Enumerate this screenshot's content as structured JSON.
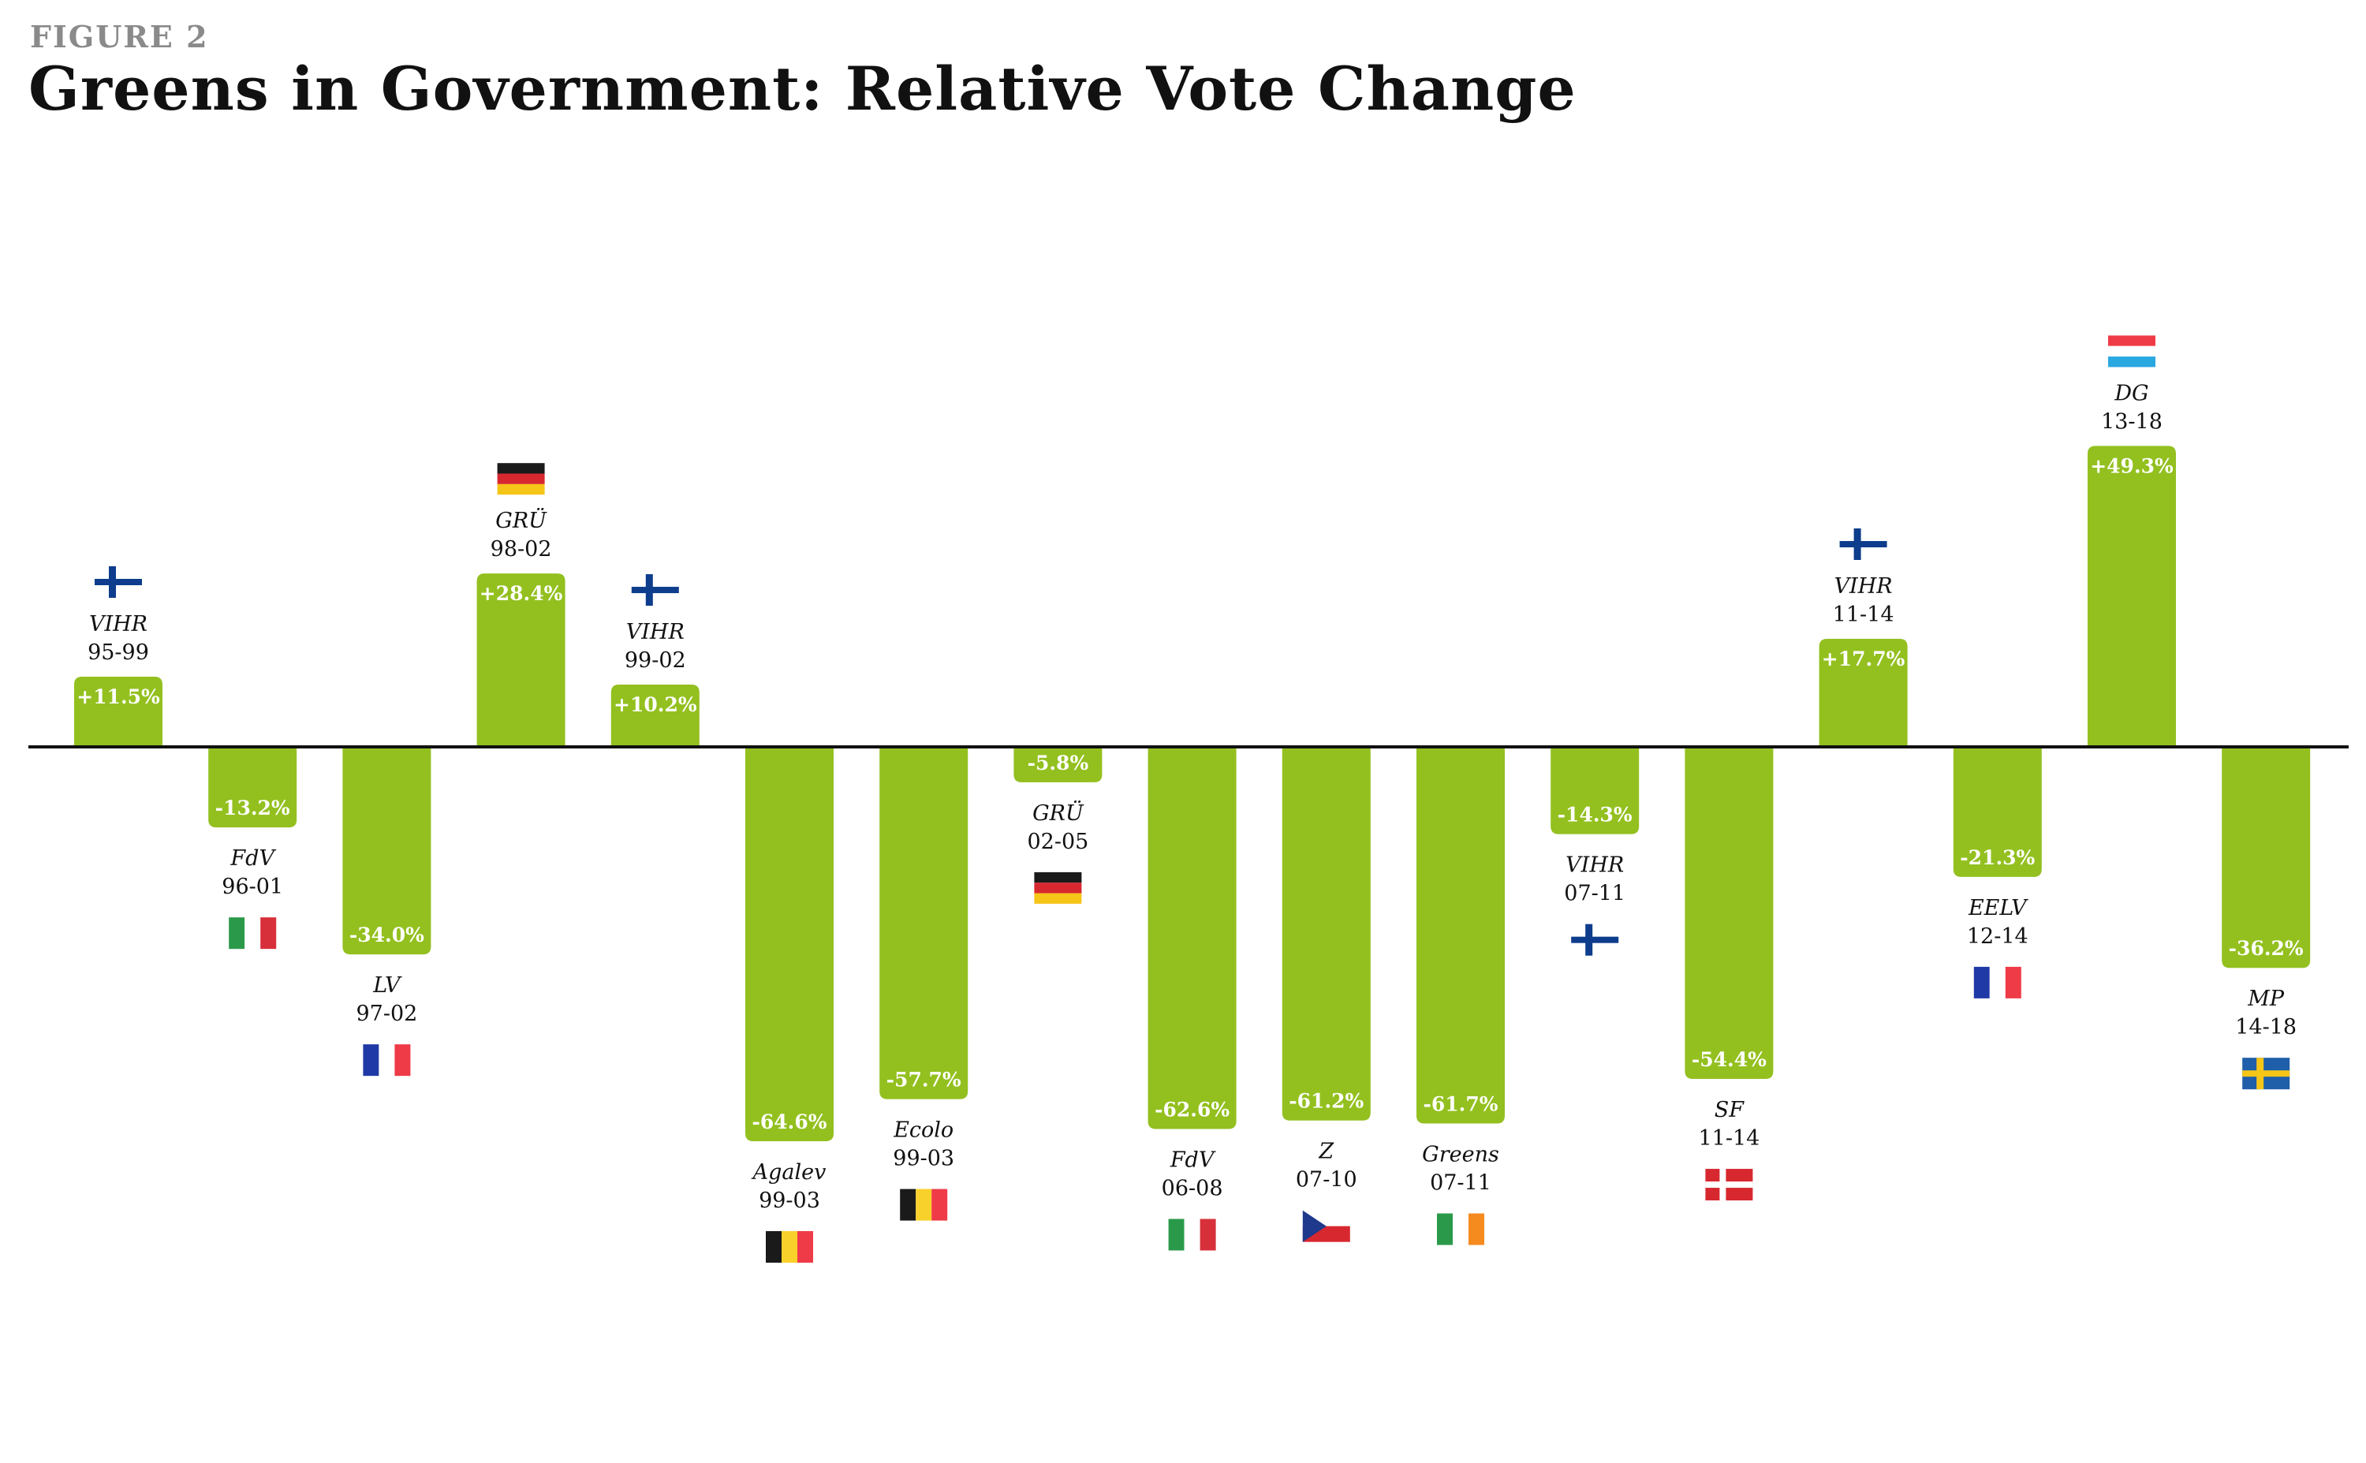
{
  "figure_label": "FIGURE 2",
  "chart_data": {
    "type": "bar",
    "title": "Greens in Government: Relative Vote Change",
    "xlabel": "",
    "ylabel": "",
    "unit": "%",
    "ylim": [
      -70,
      55
    ],
    "grid": false,
    "legend": "none",
    "bar_color": "#93c01f",
    "axis_color": "#111111",
    "categories": [
      "VIHR 95-99",
      "FdV 96-01",
      "LV 97-02",
      "GRÜ 98-02",
      "VIHR 99-02",
      "Agalev 99-03",
      "Ecolo 99-03",
      "GRÜ 02-05",
      "FdV 06-08",
      "Z 07-10",
      "Greens 07-11",
      "VIHR 07-11",
      "SF 11-14",
      "VIHR 11-14",
      "EELV 12-14",
      "DG 13-18",
      "MP 14-18"
    ],
    "values": [
      11.5,
      -13.2,
      -34.0,
      28.4,
      10.2,
      -64.6,
      -57.7,
      -5.8,
      -62.6,
      -61.2,
      -61.7,
      -14.3,
      -54.4,
      17.7,
      -21.3,
      49.3,
      -36.2
    ],
    "bars": [
      {
        "party": "VIHR",
        "period": "95-99",
        "value": 11.5,
        "label": "+11.5%",
        "flag": "finland-flag-icon"
      },
      {
        "party": "FdV",
        "period": "96-01",
        "value": -13.2,
        "label": "-13.2%",
        "flag": "italy-flag-icon"
      },
      {
        "party": "LV",
        "period": "97-02",
        "value": -34.0,
        "label": "-34.0%",
        "flag": "france-flag-icon"
      },
      {
        "party": "GRÜ",
        "period": "98-02",
        "value": 28.4,
        "label": "+28.4%",
        "flag": "germany-flag-icon"
      },
      {
        "party": "VIHR",
        "period": "99-02",
        "value": 10.2,
        "label": "+10.2%",
        "flag": "finland-flag-icon"
      },
      {
        "party": "Agalev",
        "period": "99-03",
        "value": -64.6,
        "label": "-64.6%",
        "flag": "belgium-flag-icon"
      },
      {
        "party": "Ecolo",
        "period": "99-03",
        "value": -57.7,
        "label": "-57.7%",
        "flag": "belgium-flag-icon"
      },
      {
        "party": "GRÜ",
        "period": "02-05",
        "value": -5.8,
        "label": "-5.8%",
        "flag": "germany-flag-icon"
      },
      {
        "party": "FdV",
        "period": "06-08",
        "value": -62.6,
        "label": "-62.6%",
        "flag": "italy-flag-icon"
      },
      {
        "party": "Z",
        "period": "07-10",
        "value": -61.2,
        "label": "-61.2%",
        "flag": "czech-flag-icon"
      },
      {
        "party": "Greens",
        "period": "07-11",
        "value": -61.7,
        "label": "-61.7%",
        "flag": "ireland-flag-icon"
      },
      {
        "party": "VIHR",
        "period": "07-11",
        "value": -14.3,
        "label": "-14.3%",
        "flag": "finland-flag-icon"
      },
      {
        "party": "SF",
        "period": "11-14",
        "value": -54.4,
        "label": "-54.4%",
        "flag": "denmark-flag-icon"
      },
      {
        "party": "VIHR",
        "period": "11-14",
        "value": 17.7,
        "label": "+17.7%",
        "flag": "finland-flag-icon"
      },
      {
        "party": "EELV",
        "period": "12-14",
        "value": -21.3,
        "label": "-21.3%",
        "flag": "france-flag-icon"
      },
      {
        "party": "DG",
        "period": "13-18",
        "value": 49.3,
        "label": "+49.3%",
        "flag": "luxembourg-flag-icon"
      },
      {
        "party": "MP",
        "period": "14-18",
        "value": -36.2,
        "label": "-36.2%",
        "flag": "sweden-flag-icon"
      }
    ]
  }
}
